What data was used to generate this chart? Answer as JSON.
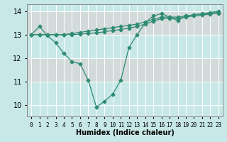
{
  "xlabel": "Humidex (Indice chaleur)",
  "bg_color": "#c8e8e8",
  "line_color": "#2e8b74",
  "grid_color": "#b0d8d8",
  "x_values": [
    0,
    1,
    2,
    3,
    4,
    5,
    6,
    7,
    8,
    9,
    10,
    11,
    12,
    13,
    14,
    15,
    16,
    17,
    18,
    19,
    20,
    21,
    22,
    23
  ],
  "line1": [
    13.0,
    13.35,
    12.95,
    12.65,
    12.2,
    11.85,
    11.75,
    11.05,
    9.9,
    10.15,
    10.45,
    11.05,
    12.45,
    13.0,
    13.5,
    13.8,
    13.9,
    13.75,
    13.6,
    13.8,
    13.85,
    13.9,
    13.95,
    14.0
  ],
  "line2": [
    13.0,
    13.0,
    13.0,
    13.0,
    13.0,
    13.05,
    13.1,
    13.15,
    13.2,
    13.25,
    13.3,
    13.35,
    13.4,
    13.45,
    13.55,
    13.65,
    13.75,
    13.75,
    13.75,
    13.8,
    13.85,
    13.88,
    13.92,
    13.95
  ],
  "line3": [
    13.0,
    13.0,
    13.0,
    13.0,
    13.0,
    13.0,
    13.02,
    13.05,
    13.08,
    13.12,
    13.18,
    13.22,
    13.28,
    13.35,
    13.45,
    13.58,
    13.68,
    13.7,
    13.7,
    13.75,
    13.8,
    13.83,
    13.88,
    13.92
  ],
  "ylim": [
    9.5,
    14.3
  ],
  "xlim": [
    -0.5,
    23.5
  ],
  "yticks": [
    10,
    11,
    12,
    13,
    14
  ],
  "xticks": [
    0,
    1,
    2,
    3,
    4,
    5,
    6,
    7,
    8,
    9,
    10,
    11,
    12,
    13,
    14,
    15,
    16,
    17,
    18,
    19,
    20,
    21,
    22,
    23
  ]
}
